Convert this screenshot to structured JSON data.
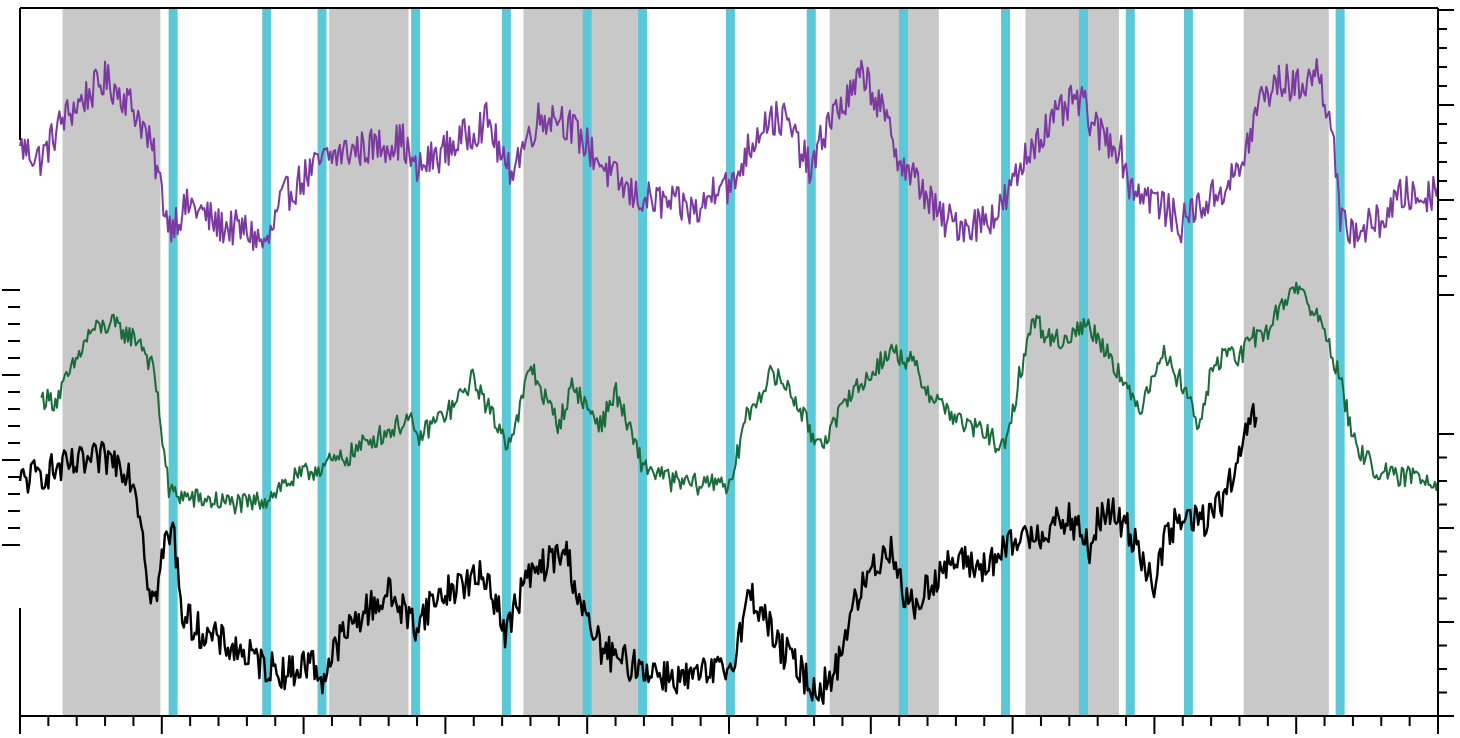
{
  "chart_data": {
    "type": "line",
    "title": "",
    "xlabel": "",
    "ylabel": "",
    "grid": false,
    "legend": "none",
    "xlim": [
      0,
      100
    ],
    "x_ticks": {
      "major_every": 10,
      "minor_every": 2
    },
    "colors": {
      "background": "#ffffff",
      "frame": "#000000",
      "shade_band": "#c8c8c8",
      "event_line": "#5bc8d8",
      "purple": "#7b3aa0",
      "green": "#1b6b3a",
      "black": "#000000"
    },
    "shaded_intervals": [
      [
        3.0,
        9.9
      ],
      [
        21.8,
        27.4
      ],
      [
        35.5,
        43.6
      ],
      [
        57.1,
        64.8
      ],
      [
        70.9,
        77.5
      ],
      [
        86.3,
        92.3
      ]
    ],
    "event_lines": [
      10.8,
      17.4,
      21.3,
      27.9,
      34.3,
      40.0,
      43.9,
      50.1,
      55.8,
      62.3,
      69.5,
      75.0,
      78.3,
      82.4,
      93.1
    ],
    "series": [
      {
        "key": "purple",
        "x": [
          0,
          1.5,
          3,
          4.5,
          6,
          7.5,
          8.5,
          9.5,
          10.5,
          12,
          14,
          16,
          17.4,
          18.5,
          20,
          21.5,
          23,
          25,
          27,
          27.9,
          29,
          31,
          33,
          34.3,
          35,
          36.5,
          38,
          40,
          41.5,
          43,
          44,
          46,
          48,
          49.5,
          50.1,
          51,
          52.5,
          54,
          55.8,
          57,
          58.5,
          59.5,
          61,
          62.3,
          63.5,
          65,
          67,
          69,
          70,
          71.5,
          73,
          74.5,
          75,
          76,
          77.5,
          78.3,
          80,
          82,
          82.4,
          84,
          86,
          87.5,
          89,
          90,
          91.5,
          92.5,
          93.1,
          94.5,
          96,
          97.5,
          99,
          100
        ],
        "y": [
          60,
          55,
          70,
          78,
          85,
          78,
          70,
          55,
          30,
          38,
          30,
          28,
          22,
          40,
          48,
          55,
          58,
          60,
          62,
          50,
          55,
          62,
          70,
          50,
          55,
          70,
          72,
          60,
          50,
          42,
          40,
          38,
          35,
          50,
          42,
          55,
          70,
          70,
          50,
          70,
          78,
          88,
          70,
          52,
          45,
          32,
          30,
          35,
          45,
          62,
          70,
          78,
          75,
          65,
          60,
          45,
          40,
          30,
          35,
          40,
          50,
          78,
          85,
          82,
          88,
          70,
          30,
          28,
          32,
          42,
          40,
          45
        ]
      },
      {
        "key": "green",
        "x": [
          1.5,
          2.5,
          3.5,
          5,
          6.5,
          7.5,
          8.5,
          9.5,
          10.5,
          12,
          14,
          16,
          17.4,
          18.5,
          20,
          21.5,
          23,
          24.5,
          26,
          27.5,
          27.9,
          29,
          30.5,
          32,
          33,
          34.3,
          35,
          36,
          37,
          38,
          39,
          40,
          41,
          42,
          43,
          43.9,
          46,
          48,
          49.5,
          50.1,
          51,
          52,
          53,
          54,
          55,
          55.8,
          56.5,
          57.5,
          58.5,
          59.5,
          60.5,
          61.5,
          62.3,
          63,
          64,
          65,
          66.5,
          68,
          69.5,
          70.5,
          71.5,
          72.5,
          73.5,
          74.5,
          75.3,
          76,
          77,
          78.3,
          79,
          80.5,
          81.5,
          82.4,
          83,
          84,
          85,
          86,
          87,
          88,
          89,
          90,
          91,
          92,
          93.1,
          94,
          95.5,
          97,
          98.5,
          100
        ],
        "y": [
          38,
          37,
          45,
          58,
          60,
          57,
          55,
          45,
          10,
          8,
          7,
          6,
          8,
          12,
          15,
          18,
          20,
          25,
          28,
          32,
          25,
          30,
          35,
          44,
          35,
          25,
          30,
          48,
          38,
          30,
          42,
          35,
          30,
          40,
          28,
          18,
          13,
          12,
          14,
          10,
          30,
          38,
          45,
          42,
          35,
          27,
          25,
          30,
          40,
          42,
          48,
          52,
          50,
          48,
          40,
          36,
          30,
          28,
          22,
          45,
          62,
          56,
          55,
          58,
          60,
          56,
          50,
          38,
          35,
          52,
          45,
          40,
          28,
          45,
          52,
          50,
          56,
          58,
          66,
          72,
          65,
          58,
          44,
          25,
          17,
          14,
          15,
          13
        ]
      },
      {
        "key": "black",
        "x": [
          0,
          2,
          4,
          6,
          7,
          7.5,
          8,
          8.5,
          9,
          9.5,
          10.2,
          10.8,
          11.5,
          13,
          15,
          17.4,
          19,
          20.5,
          21.3,
          22.5,
          24,
          26,
          27.9,
          29,
          31,
          33,
          34.3,
          35.5,
          37,
          38.5,
          40,
          41,
          42,
          43.9,
          45,
          47,
          49,
          50.1,
          51.5,
          52.5,
          53.5,
          54.5,
          55.8,
          56.5,
          57.5,
          58.5,
          60,
          61.5,
          62.3,
          63,
          64.5,
          66,
          68,
          69.5,
          70.5,
          72.5,
          74,
          75,
          75.5,
          76,
          77,
          78.3,
          79,
          80,
          81,
          82.4,
          83.5,
          84.5,
          85.5,
          86.2,
          86.8,
          87.2
        ],
        "y": [
          70,
          73,
          75,
          77,
          76,
          74,
          70,
          60,
          40,
          32,
          50,
          55,
          28,
          22,
          18,
          12,
          10,
          14,
          8,
          20,
          28,
          35,
          25,
          32,
          38,
          40,
          22,
          38,
          44,
          48,
          25,
          18,
          14,
          12,
          10,
          8,
          10,
          12,
          35,
          28,
          18,
          14,
          6,
          5,
          10,
          28,
          42,
          50,
          35,
          30,
          40,
          45,
          43,
          48,
          52,
          55,
          58,
          52,
          48,
          58,
          60,
          54,
          48,
          38,
          55,
          58,
          58,
          62,
          70,
          78,
          92,
          90
        ]
      }
    ]
  }
}
